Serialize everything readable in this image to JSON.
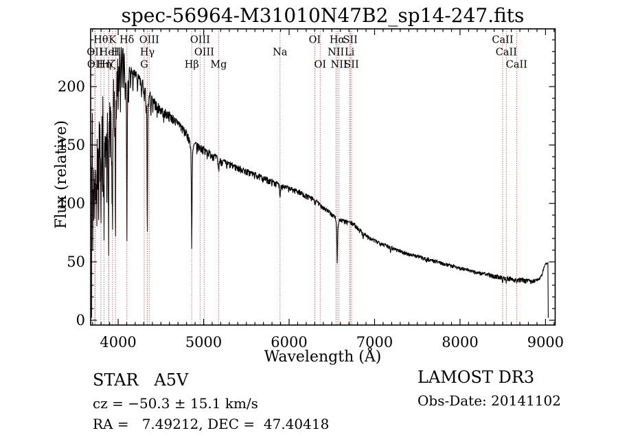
{
  "title": "spec-56964-M31010N47B2_sp14-247.fits",
  "axes": {
    "xlabel": "Wavelength (Å)",
    "ylabel": "Flux (relative)"
  },
  "annotations": {
    "class_line": "STAR   A5V",
    "cz_line": "cz = −50.3 ± 15.1 km/s",
    "radec_line": "RA =   7.49212, DEC =  47.40418",
    "survey": "LAMOST DR3",
    "obs_date": "Obs-Date: 20141102"
  },
  "colors": {
    "background": "#ffffff",
    "trace": "#000000",
    "frame": "#000000",
    "line_marker": "#a03232"
  },
  "chart_data": {
    "type": "line",
    "title": "spec-56964-M31010N47B2_sp14-247.fits",
    "xlabel": "Wavelength (Å)",
    "ylabel": "Flux (relative)",
    "xlim": [
      3678,
      9113
    ],
    "ylim": [
      -4.1,
      249.4
    ],
    "x_ticks": [
      4000,
      5000,
      6000,
      7000,
      8000,
      9000
    ],
    "x_minor_step": 100,
    "y_ticks": [
      0,
      50,
      100,
      150,
      200
    ],
    "y_minor_step": 10,
    "grid": false,
    "legend": "none",
    "noise_seed": 7,
    "spectral_line_markers": [
      {
        "wavelength": 3798.0,
        "label": "Hθ",
        "row": 1
      },
      {
        "wavelength": 3933.7,
        "label": "K",
        "row": 1
      },
      {
        "wavelength": 4101.7,
        "label": "Hδ",
        "row": 1
      },
      {
        "wavelength": 4363.2,
        "label": "OIII",
        "row": 1
      },
      {
        "wavelength": 4958.9,
        "label": "OIII",
        "row": 1
      },
      {
        "wavelength": 6300.3,
        "label": "OI",
        "row": 1
      },
      {
        "wavelength": 6562.8,
        "label": "Hα",
        "row": 1
      },
      {
        "wavelength": 6716.4,
        "label": "SII",
        "row": 1
      },
      {
        "wavelength": 8498.0,
        "label": "CaII",
        "row": 1
      },
      {
        "wavelength": 3727.1,
        "label": "OII",
        "row": 2
      },
      {
        "wavelength": 3888.6,
        "label": "HeI",
        "row": 2
      },
      {
        "wavelength": 3968.5,
        "label": "H",
        "row": 2
      },
      {
        "wavelength": 4340.5,
        "label": "Hγ",
        "row": 2
      },
      {
        "wavelength": 5006.8,
        "label": "OIII",
        "row": 2
      },
      {
        "wavelength": 5894.0,
        "label": "Na",
        "row": 2
      },
      {
        "wavelength": 6548.1,
        "label": "NII",
        "row": 2
      },
      {
        "wavelength": 6707.8,
        "label": "Li",
        "row": 2
      },
      {
        "wavelength": 8542.1,
        "label": "CaII",
        "row": 2
      },
      {
        "wavelength": 3729.9,
        "label": "OII",
        "row": 3
      },
      {
        "wavelength": 3835.4,
        "label": "Hη",
        "row": 3
      },
      {
        "wavelength": 3889.1,
        "label": "Hζ",
        "row": 3
      },
      {
        "wavelength": 4304.4,
        "label": "G",
        "row": 3
      },
      {
        "wavelength": 4861.3,
        "label": "Hβ",
        "row": 3
      },
      {
        "wavelength": 5175.3,
        "label": "Mg",
        "row": 3
      },
      {
        "wavelength": 6363.8,
        "label": "OI",
        "row": 3
      },
      {
        "wavelength": 6583.4,
        "label": "NII",
        "row": 3
      },
      {
        "wavelength": 6730.8,
        "label": "SII",
        "row": 3
      },
      {
        "wavelength": 8662.1,
        "label": "CaII",
        "row": 3
      }
    ],
    "continuum_points": [
      [
        3690,
        168
      ],
      [
        3720,
        172
      ],
      [
        3760,
        182
      ],
      [
        3800,
        196
      ],
      [
        3840,
        207
      ],
      [
        3880,
        216
      ],
      [
        3920,
        222
      ],
      [
        3960,
        226
      ],
      [
        4000,
        229
      ],
      [
        4040,
        232
      ],
      [
        4080,
        228
      ],
      [
        4120,
        220
      ],
      [
        4160,
        214
      ],
      [
        4200,
        211
      ],
      [
        4260,
        206
      ],
      [
        4320,
        200
      ],
      [
        4360,
        196
      ],
      [
        4400,
        189
      ],
      [
        4500,
        181
      ],
      [
        4600,
        176
      ],
      [
        4700,
        170
      ],
      [
        4800,
        160
      ],
      [
        4861,
        154
      ],
      [
        4900,
        151
      ],
      [
        5000,
        147
      ],
      [
        5100,
        142
      ],
      [
        5200,
        137
      ],
      [
        5300,
        134
      ],
      [
        5400,
        131
      ],
      [
        5500,
        128
      ],
      [
        5600,
        125
      ],
      [
        5700,
        122
      ],
      [
        5800,
        119
      ],
      [
        5900,
        116
      ],
      [
        6000,
        113
      ],
      [
        6100,
        111
      ],
      [
        6200,
        107
      ],
      [
        6300,
        103
      ],
      [
        6400,
        97
      ],
      [
        6500,
        91
      ],
      [
        6563,
        87
      ],
      [
        6650,
        85
      ],
      [
        6750,
        83
      ],
      [
        6850,
        76
      ],
      [
        6950,
        70
      ],
      [
        7050,
        67
      ],
      [
        7150,
        64
      ],
      [
        7250,
        61
      ],
      [
        7350,
        58
      ],
      [
        7450,
        56
      ],
      [
        7550,
        54
      ],
      [
        7650,
        52
      ],
      [
        7750,
        50
      ],
      [
        7850,
        48
      ],
      [
        7950,
        46
      ],
      [
        8050,
        44
      ],
      [
        8150,
        42
      ],
      [
        8250,
        40.5
      ],
      [
        8350,
        39
      ],
      [
        8450,
        37.5
      ],
      [
        8550,
        36.5
      ],
      [
        8650,
        35.5
      ],
      [
        8750,
        34.5
      ],
      [
        8850,
        34
      ],
      [
        8920,
        35
      ],
      [
        8960,
        40
      ],
      [
        8985,
        46
      ],
      [
        9000,
        48.5
      ],
      [
        9028,
        49
      ],
      [
        9030,
        25
      ],
      [
        9032,
        2
      ]
    ],
    "noise_amplitude_points": [
      [
        3690,
        40
      ],
      [
        3760,
        36
      ],
      [
        3850,
        30
      ],
      [
        3930,
        22
      ],
      [
        3990,
        14
      ],
      [
        4050,
        10
      ],
      [
        4150,
        8
      ],
      [
        4300,
        7.5
      ],
      [
        4500,
        6.5
      ],
      [
        4800,
        6
      ],
      [
        5100,
        5
      ],
      [
        5400,
        4.5
      ],
      [
        5800,
        4
      ],
      [
        6200,
        3.5
      ],
      [
        6600,
        3
      ],
      [
        7000,
        2.8
      ],
      [
        7400,
        2.4
      ],
      [
        7800,
        2.2
      ],
      [
        8200,
        2.4
      ],
      [
        8500,
        2.8
      ],
      [
        8800,
        3
      ],
      [
        8950,
        1.8
      ],
      [
        9032,
        0.5
      ]
    ],
    "absorption_features": [
      [
        3703,
        60,
        2.5
      ],
      [
        3711,
        95,
        2.2
      ],
      [
        3718,
        108,
        2.4
      ],
      [
        3727,
        82,
        2.6
      ],
      [
        3734,
        122,
        2.2
      ],
      [
        3742,
        100,
        2.4
      ],
      [
        3750,
        86,
        2.6
      ],
      [
        3759,
        128,
        2.4
      ],
      [
        3771,
        74,
        2.8
      ],
      [
        3781,
        138,
        2.4
      ],
      [
        3790,
        112,
        2.2
      ],
      [
        3798,
        70,
        2.8
      ],
      [
        3807,
        142,
        2.4
      ],
      [
        3816,
        122,
        2.2
      ],
      [
        3827,
        102,
        2.4
      ],
      [
        3835,
        66,
        3
      ],
      [
        3844,
        148,
        2.4
      ],
      [
        3853,
        124,
        2.4
      ],
      [
        3861,
        140,
        2.2
      ],
      [
        3869,
        112,
        2.6
      ],
      [
        3877,
        152,
        2.4
      ],
      [
        3883,
        126,
        2.2
      ],
      [
        3889,
        68,
        3
      ],
      [
        3898,
        152,
        2.4
      ],
      [
        3906,
        132,
        2.4
      ],
      [
        3913,
        162,
        2.2
      ],
      [
        3920,
        142,
        2.4
      ],
      [
        3927,
        122,
        2.6
      ],
      [
        3934,
        80,
        3.2
      ],
      [
        3942,
        162,
        2.4
      ],
      [
        3951,
        178,
        2.6
      ],
      [
        3959,
        152,
        2.4
      ],
      [
        3969,
        73,
        3.2
      ],
      [
        3979,
        172,
        2.6
      ],
      [
        3989,
        188,
        2.6
      ],
      [
        4000,
        176,
        2.6
      ],
      [
        4010,
        192,
        2.6
      ],
      [
        4026,
        182,
        3
      ],
      [
        4045,
        198,
        3
      ],
      [
        4064,
        202,
        2.6
      ],
      [
        4081,
        198,
        2.6
      ],
      [
        4102,
        100,
        3.2
      ],
      [
        4102,
        196,
        14
      ],
      [
        4122,
        200,
        2.6
      ],
      [
        4145,
        196,
        2.6
      ],
      [
        4173,
        200,
        3
      ],
      [
        4227,
        196,
        3
      ],
      [
        4272,
        192,
        3
      ],
      [
        4305,
        186,
        4
      ],
      [
        4326,
        188,
        2.6
      ],
      [
        4341,
        88,
        3.2
      ],
      [
        4341,
        180,
        13
      ],
      [
        4384,
        178,
        3
      ],
      [
        4406,
        180,
        2.6
      ],
      [
        4457,
        176,
        3
      ],
      [
        4532,
        170,
        3
      ],
      [
        4668,
        165,
        3
      ],
      [
        4861,
        78,
        3.6
      ],
      [
        4861,
        140,
        14
      ],
      [
        4921,
        146,
        2.6
      ],
      [
        4959,
        148,
        2.4
      ],
      [
        5017,
        143,
        2.6
      ],
      [
        5042,
        142,
        2.4
      ],
      [
        5175,
        130,
        6
      ],
      [
        5270,
        131,
        3
      ],
      [
        5894,
        107,
        4.5
      ],
      [
        6163,
        105,
        2.4
      ],
      [
        6300,
        98,
        2.6
      ],
      [
        6363,
        99,
        2.4
      ],
      [
        6563,
        57,
        3.4
      ],
      [
        6563,
        78,
        10
      ],
      [
        6867,
        71,
        3.5
      ],
      [
        7186,
        60,
        3
      ],
      [
        7605,
        50,
        4
      ],
      [
        8498,
        32.5,
        3
      ],
      [
        8542,
        32,
        3
      ],
      [
        8662,
        31,
        3
      ]
    ],
    "edge_artifacts": {
      "blue_edge_drop": [
        3690,
        2
      ],
      "red_edge_plateau_flux": 49,
      "red_edge_end": [
        9032,
        2
      ]
    }
  }
}
